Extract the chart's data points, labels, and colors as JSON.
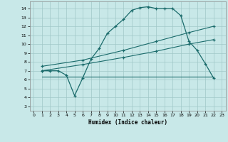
{
  "xlabel": "Humidex (Indice chaleur)",
  "bg_color": "#c8e8e8",
  "grid_color": "#a0c8c8",
  "line_color": "#1a6b6b",
  "xlim": [
    -0.5,
    23.5
  ],
  "ylim": [
    2.5,
    14.8
  ],
  "yticks": [
    3,
    4,
    5,
    6,
    7,
    8,
    9,
    10,
    11,
    12,
    13,
    14
  ],
  "xticks": [
    0,
    1,
    2,
    3,
    4,
    5,
    6,
    7,
    8,
    9,
    10,
    11,
    12,
    13,
    14,
    15,
    16,
    17,
    18,
    19,
    20,
    21,
    22,
    23
  ],
  "line1_x": [
    1,
    2,
    3,
    4,
    5,
    6,
    7,
    8,
    9,
    10,
    11,
    12,
    13,
    14,
    15,
    16,
    17,
    18,
    19,
    20,
    21,
    22
  ],
  "line1_y": [
    7.0,
    7.0,
    7.0,
    6.5,
    4.2,
    6.2,
    8.3,
    9.5,
    11.2,
    12.0,
    12.8,
    13.8,
    14.1,
    14.2,
    14.0,
    14.0,
    14.0,
    13.2,
    10.3,
    9.3,
    7.8,
    6.2
  ],
  "line2_x": [
    1,
    6,
    11,
    15,
    19,
    22
  ],
  "line2_y": [
    7.5,
    8.2,
    9.3,
    10.3,
    11.3,
    12.0
  ],
  "line3_x": [
    1,
    6,
    11,
    15,
    19,
    22
  ],
  "line3_y": [
    7.0,
    7.7,
    8.5,
    9.2,
    10.0,
    10.5
  ],
  "line4_x": [
    1,
    6,
    11,
    16,
    22
  ],
  "line4_y": [
    6.3,
    6.3,
    6.3,
    6.3,
    6.3
  ]
}
